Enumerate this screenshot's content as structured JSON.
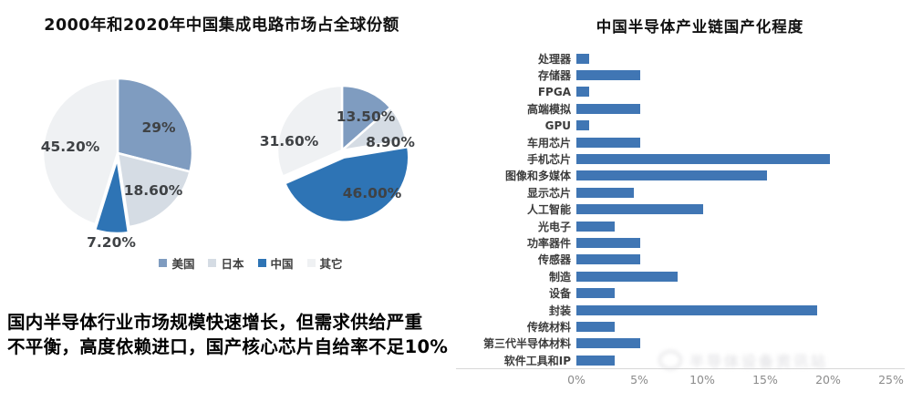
{
  "left_panel": {
    "title": "2000年和2020年中国集成电路市场占全球份额",
    "note_lines": [
      "国内半导体行业市场规模快速增长，但需求供给严重",
      "不平衡，高度依赖进口，国产核心芯片自给率不足10%"
    ],
    "legend": [
      {
        "label": "美国",
        "color": "#7f9cc0"
      },
      {
        "label": "日本",
        "color": "#d5dce4"
      },
      {
        "label": "中国",
        "color": "#2e74b5"
      },
      {
        "label": "其它",
        "color": "#eff1f3"
      }
    ]
  },
  "right_panel": {
    "title": "中国半导体产业链国产化程度",
    "bar_color": "#4076b4"
  },
  "watermark": "半导体设备资讯站",
  "chart_data": [
    {
      "type": "pie",
      "position": "left",
      "labels": [
        "美国",
        "日本",
        "中国",
        "其它"
      ],
      "values": [
        29,
        18.6,
        7.2,
        45.2
      ],
      "display_labels": [
        "29%",
        "18.60%",
        "7.20%",
        "45.20%"
      ],
      "colors": [
        "#7f9cc0",
        "#d5dce4",
        "#2e74b5",
        "#eff1f3"
      ],
      "exploded_index": 2,
      "start_angle_deg": 0,
      "direction": "clockwise"
    },
    {
      "type": "pie",
      "position": "right",
      "labels": [
        "美国",
        "日本",
        "中国",
        "其它"
      ],
      "values": [
        13.5,
        8.9,
        46.0,
        31.6
      ],
      "display_labels": [
        "13.50%",
        "8.90%",
        "46.00%",
        "31.60%"
      ],
      "colors": [
        "#7f9cc0",
        "#d5dce4",
        "#2e74b5",
        "#eff1f3"
      ],
      "exploded_index": 2,
      "start_angle_deg": 0,
      "direction": "clockwise"
    },
    {
      "type": "bar",
      "orientation": "horizontal",
      "title": "中国半导体产业链国产化程度",
      "categories": [
        "处理器",
        "存储器",
        "FPGA",
        "高端模拟",
        "GPU",
        "车用芯片",
        "手机芯片",
        "图像和多媒体",
        "显示芯片",
        "人工智能",
        "光电子",
        "功率器件",
        "传感器",
        "制造",
        "设备",
        "封装",
        "传统材料",
        "第三代半导体材料",
        "软件工具和IP"
      ],
      "values": [
        1,
        5,
        1,
        5,
        1,
        5,
        20,
        15,
        4.5,
        10,
        3,
        5,
        5,
        8,
        3,
        19,
        3,
        5,
        3
      ],
      "x_ticks": [
        "0%",
        "5%",
        "10%",
        "15%",
        "20%",
        "25%"
      ],
      "xlim": [
        0,
        25
      ],
      "grid": false,
      "legend": "none"
    }
  ]
}
